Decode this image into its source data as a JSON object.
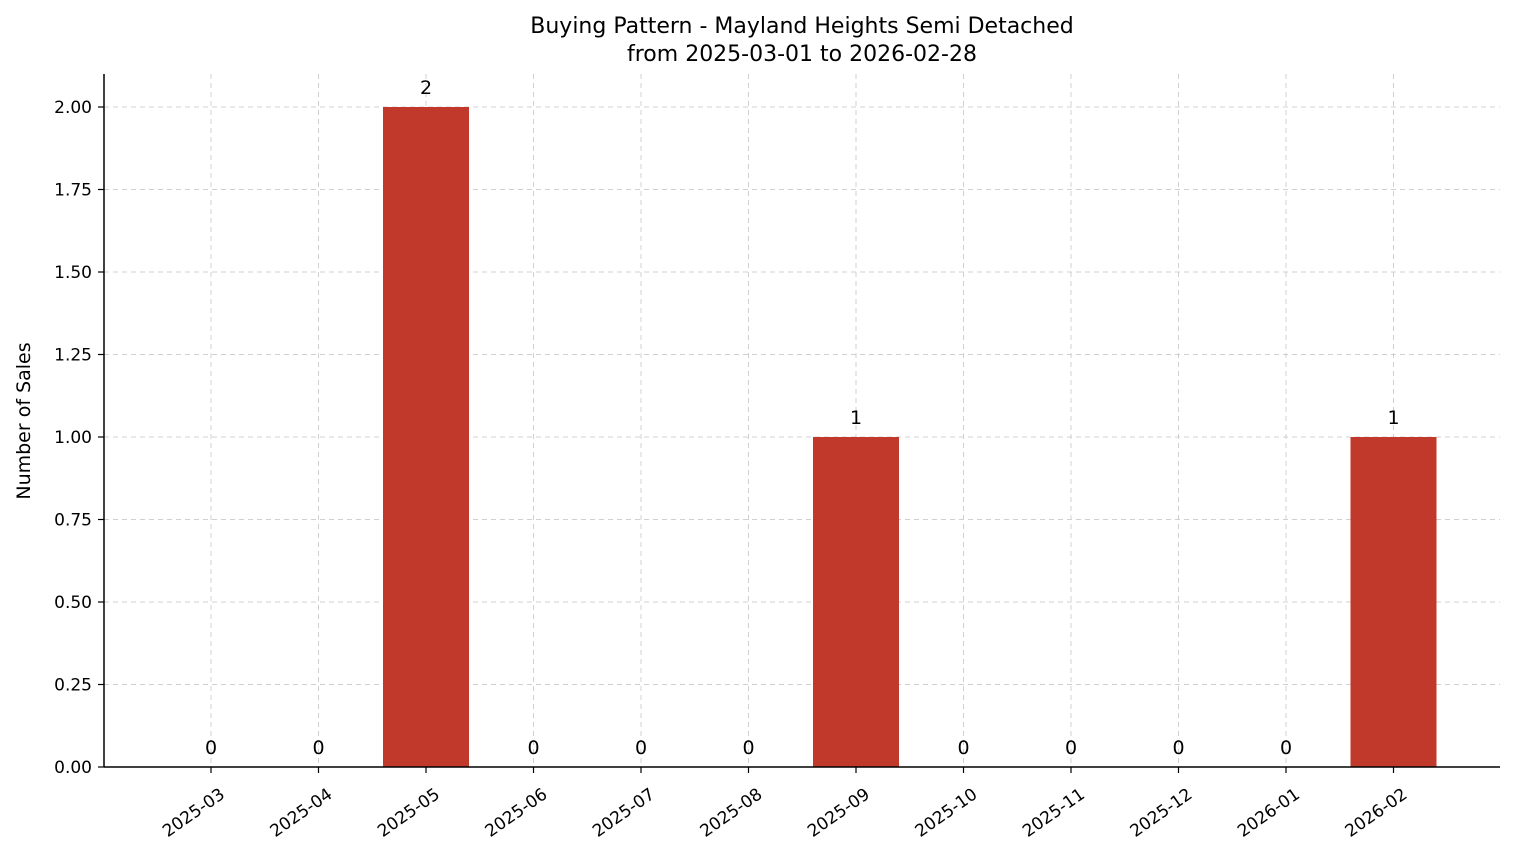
{
  "chart_data": {
    "type": "bar",
    "title": "Buying Pattern - Mayland Heights Semi Detached",
    "subtitle": "from 2025-03-01 to 2026-02-28",
    "xlabel": "",
    "ylabel": "Number of Sales",
    "categories": [
      "2025-03",
      "2025-04",
      "2025-05",
      "2025-06",
      "2025-07",
      "2025-08",
      "2025-09",
      "2025-10",
      "2025-11",
      "2025-12",
      "2026-01",
      "2026-02"
    ],
    "values": [
      0,
      0,
      2,
      0,
      0,
      0,
      1,
      0,
      0,
      0,
      0,
      1
    ],
    "data_labels": [
      "0",
      "0",
      "2",
      "0",
      "0",
      "0",
      "1",
      "0",
      "0",
      "0",
      "0",
      "1"
    ],
    "ylim": [
      0,
      2.1
    ],
    "yticks": [
      0,
      0.25,
      0.5,
      0.75,
      1.0,
      1.25,
      1.5,
      1.75,
      2.0
    ],
    "ytick_labels": [
      "0.00",
      "0.25",
      "0.50",
      "0.75",
      "1.00",
      "1.25",
      "1.50",
      "1.75",
      "2.00"
    ],
    "grid": true,
    "bar_color": "#c0392b"
  }
}
